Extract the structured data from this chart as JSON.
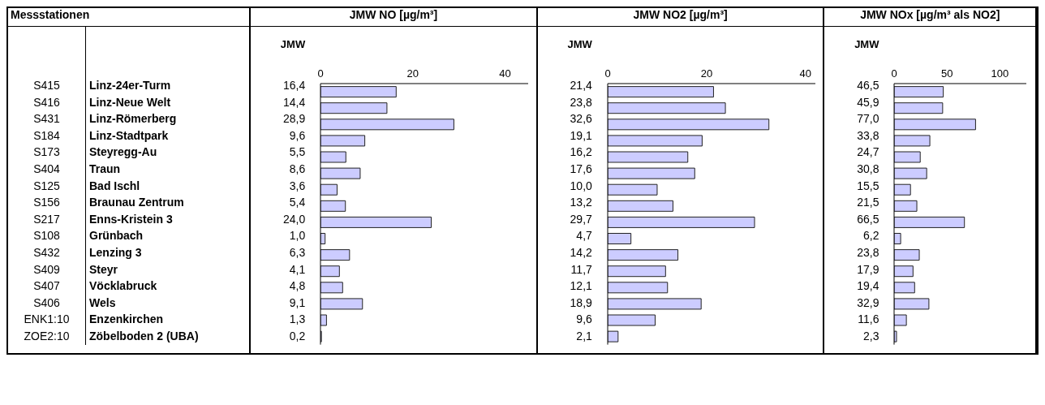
{
  "chart_data": [
    {
      "type": "other",
      "title": "Messstationen",
      "annotations": [
        "S415",
        "Linz-24er-Turm",
        "S416",
        "Linz-Neue Welt",
        "S431",
        "Linz-Römerberg",
        "S184",
        "Linz-Stadtpark",
        "S173",
        "Steyregg-Au",
        "S404",
        "Traun",
        "S125",
        "Bad Ischl",
        "S156",
        "Braunau Zentrum",
        "S217",
        "Enns-Kristein 3",
        "S108",
        "Grünbach",
        "S432",
        "Lenzing 3",
        "S409",
        "Steyr",
        "S407",
        "Vöcklabruck",
        "S406",
        "Wels",
        "ENK1:10",
        "Enzenkirchen",
        "ZOE2:10",
        "Zöbelboden 2 (UBA)"
      ]
    },
    {
      "type": "bar",
      "orientation": "horizontal",
      "title": "JMW NO [µg/m³]",
      "annotations": [
        "JMW"
      ],
      "categories": [
        null,
        null,
        null,
        null,
        null,
        null,
        null,
        null,
        null,
        null,
        null,
        null,
        null,
        null,
        null,
        null
      ],
      "xlim": [
        0,
        45
      ],
      "xticks": [
        0,
        20,
        40
      ],
      "color": "#ccccff",
      "values": [
        16.4,
        14.4,
        28.9,
        9.6,
        5.5,
        8.6,
        3.6,
        5.4,
        24.0,
        1.0,
        6.3,
        4.1,
        4.8,
        9.1,
        1.3,
        0.2
      ],
      "value_labels": [
        "16,4",
        "14,4",
        "28,9",
        "9,6",
        "5,5",
        "8,6",
        "3,6",
        "5,4",
        "24,0",
        "1,0",
        "6,3",
        "4,1",
        "4,8",
        "9,1",
        "1,3",
        "0,2"
      ]
    },
    {
      "type": "bar",
      "orientation": "horizontal",
      "title": "JMW NO2 [µg/m³]",
      "annotations": [
        "JMW"
      ],
      "categories": [
        null,
        null,
        null,
        null,
        null,
        null,
        null,
        null,
        null,
        null,
        null,
        null,
        null,
        null,
        null,
        null
      ],
      "xlim": [
        0,
        42
      ],
      "xticks": [
        0,
        20,
        40
      ],
      "color": "#ccccff",
      "values": [
        21.4,
        23.8,
        32.6,
        19.1,
        16.2,
        17.6,
        10.0,
        13.2,
        29.7,
        4.7,
        14.2,
        11.7,
        12.1,
        18.9,
        9.6,
        2.1
      ],
      "value_labels": [
        "21,4",
        "23,8",
        "32,6",
        "19,1",
        "16,2",
        "17,6",
        "10,0",
        "13,2",
        "29,7",
        "4,7",
        "14,2",
        "11,7",
        "12,1",
        "18,9",
        "9,6",
        "2,1"
      ]
    },
    {
      "type": "bar",
      "orientation": "horizontal",
      "title": "JMW NOx [µg/m³ als NO2]",
      "annotations": [
        "JMW"
      ],
      "categories": [
        null,
        null,
        null,
        null,
        null,
        null,
        null,
        null,
        null,
        null,
        null,
        null,
        null,
        null,
        null,
        null
      ],
      "xlim": [
        0,
        125
      ],
      "xticks": [
        0,
        50,
        100
      ],
      "color": "#ccccff",
      "values": [
        46.5,
        45.9,
        77.0,
        33.8,
        24.7,
        30.8,
        15.5,
        21.5,
        66.5,
        6.2,
        23.8,
        17.9,
        19.4,
        32.9,
        11.6,
        2.3
      ],
      "value_labels": [
        "46,5",
        "45,9",
        "77,0",
        "33,8",
        "24,7",
        "30,8",
        "15,5",
        "21,5",
        "66,5",
        "6,2",
        "23,8",
        "17,9",
        "19,4",
        "32,9",
        "11,6",
        "2,3"
      ]
    }
  ]
}
